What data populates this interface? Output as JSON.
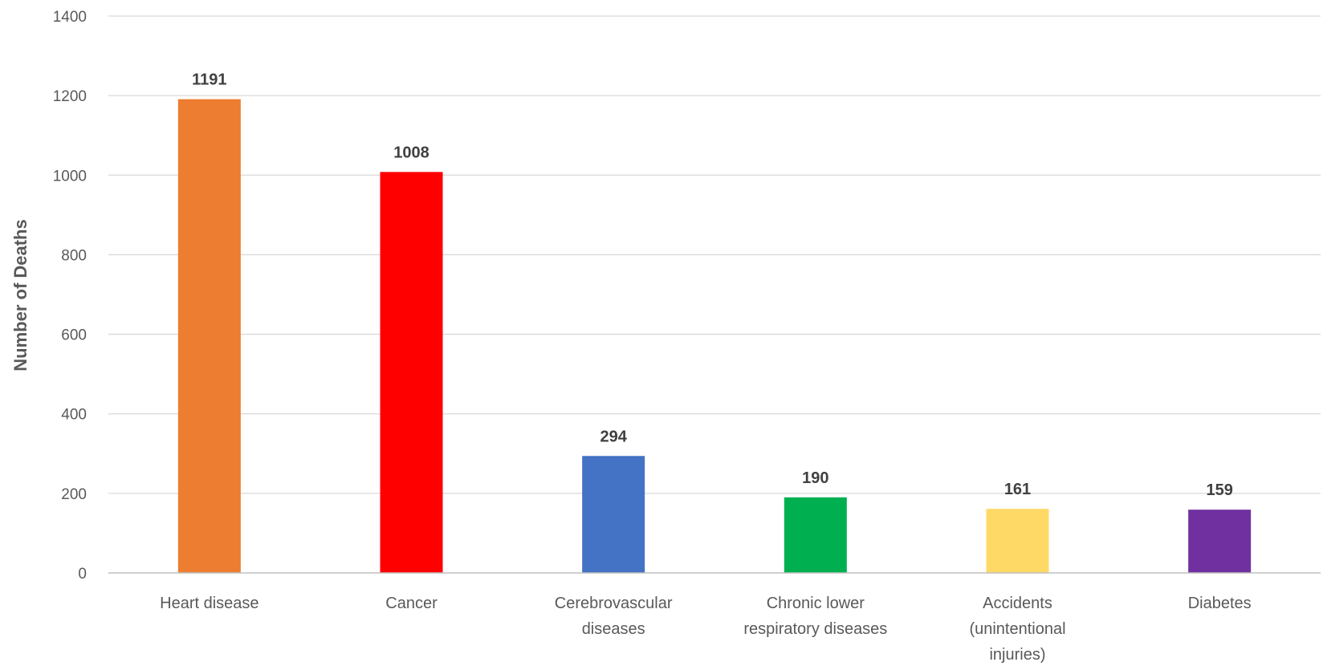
{
  "chart_data": {
    "type": "bar",
    "title": "",
    "xlabel": "",
    "ylabel": "Number of Deaths",
    "ylim": [
      0,
      1400
    ],
    "yticks": [
      0,
      200,
      400,
      600,
      800,
      1000,
      1200,
      1400
    ],
    "grid": true,
    "legend": "none",
    "categories": [
      [
        "Heart disease"
      ],
      [
        "Cancer"
      ],
      [
        "Cerebrovascular",
        "diseases"
      ],
      [
        "Chronic lower",
        "respiratory diseases"
      ],
      [
        "Accidents",
        "(unintentional",
        "injuries)"
      ],
      [
        "Diabetes"
      ]
    ],
    "values": [
      1191,
      1008,
      294,
      190,
      161,
      159
    ],
    "data_labels": [
      "1191",
      "1008",
      "294",
      "190",
      "161",
      "159"
    ],
    "colors": [
      "#ed7d31",
      "#ff0000",
      "#4472c4",
      "#00b050",
      "#ffd966",
      "#7030a0"
    ]
  }
}
